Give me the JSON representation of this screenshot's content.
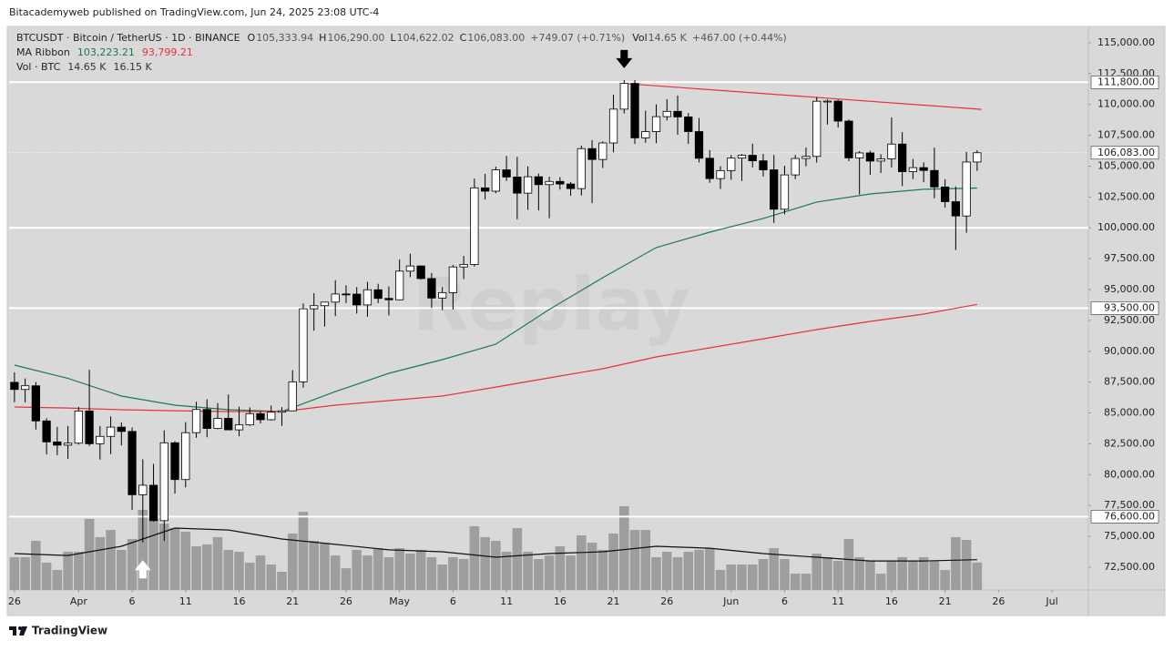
{
  "header": {
    "published": "Bitacademyweb published on TradingView.com, Jun 24, 2025 23:08 UTC-4"
  },
  "footer": {
    "brand": "TradingView"
  },
  "chart_data": {
    "type": "candlestick",
    "legend": {
      "symbol": "BTCUSDT · Bitcoin / TetherUS · 1D · BINANCE",
      "ohlc": [
        {
          "key": "O",
          "value": 105333.94,
          "label": "105,333.94"
        },
        {
          "key": "H",
          "value": 106290,
          "label": "106,290.00"
        },
        {
          "key": "L",
          "value": 104622.02,
          "label": "104,622.02"
        },
        {
          "key": "C",
          "value": 106083,
          "label": "106,083.00"
        }
      ],
      "change": "+749.07 (+0.71%)",
      "vol_key": "Vol",
      "vol": "14.65 K",
      "vol_change": "+467.00 (+0.44%)",
      "ma_name": "MA Ribbon",
      "ma_values": [
        {
          "value": 103223.21,
          "label": "103,223.21",
          "color": "#1e7a50"
        },
        {
          "value": 93799.21,
          "label": "93,799.21",
          "color": "#e8313d"
        }
      ],
      "vol_name": "Vol · BTC",
      "vol_values": [
        "14.65 K",
        "16.15 K"
      ]
    },
    "watermark": "Replay",
    "x": [
      0,
      1,
      2,
      3,
      4,
      5,
      6,
      7,
      8,
      9,
      10,
      11,
      12,
      13,
      14,
      15,
      16,
      17,
      18,
      19,
      20,
      21,
      22,
      23,
      24,
      25,
      26,
      27,
      28,
      29,
      30,
      31,
      32,
      33,
      34,
      35,
      36,
      37,
      38,
      39,
      40,
      41,
      42,
      43,
      44,
      45,
      46,
      47,
      48,
      49,
      50,
      51,
      52,
      53,
      54,
      55,
      56,
      57,
      58,
      59,
      60,
      61,
      62,
      63,
      64,
      65,
      66,
      67,
      68,
      69,
      70,
      71,
      72,
      73,
      74,
      75,
      76,
      77,
      78,
      79,
      80,
      81,
      82,
      83,
      84,
      85,
      86,
      87,
      88,
      89,
      90
    ],
    "open": [
      87480,
      86900,
      87200,
      84350,
      82650,
      82390,
      82550,
      85160,
      82500,
      83100,
      83850,
      83500,
      78370,
      79140,
      76270,
      82580,
      79600,
      83400,
      85280,
      83740,
      84560,
      83630,
      84030,
      84940,
      84450,
      85060,
      85170,
      87520,
      93440,
      93690,
      93980,
      94640,
      94630,
      93750,
      94980,
      94280,
      94170,
      96490,
      96910,
      95890,
      94310,
      94750,
      96830,
      97030,
      103240,
      102970,
      104700,
      104120,
      102810,
      104140,
      103500,
      103760,
      103550,
      103180,
      106420,
      105540,
      106880,
      109620,
      111700,
      107290,
      107800,
      109010,
      109440,
      108990,
      107800,
      105640,
      103990,
      104640,
      105650,
      105880,
      105430,
      104700,
      101510,
      104290,
      105620,
      105790,
      110260,
      110270,
      108650,
      105670,
      106070,
      105410,
      105590,
      106790,
      104550,
      104880,
      104650,
      103310,
      102120,
      100960,
      105333.94
    ],
    "high": [
      88290,
      87790,
      87500,
      84570,
      83870,
      83940,
      85490,
      88500,
      83940,
      84720,
      84230,
      83820,
      81240,
      80870,
      83590,
      82700,
      84250,
      85900,
      86100,
      85800,
      86500,
      85500,
      85450,
      85130,
      85600,
      85470,
      88460,
      93880,
      94700,
      94000,
      95760,
      95340,
      95200,
      95620,
      95460,
      95250,
      97440,
      97900,
      96960,
      96340,
      95200,
      97000,
      97730,
      103990,
      104370,
      104960,
      105820,
      105750,
      104980,
      104390,
      104150,
      104110,
      103710,
      106660,
      107100,
      107000,
      110800,
      111980,
      111970,
      109500,
      110000,
      110420,
      110720,
      109300,
      108900,
      106300,
      105000,
      105900,
      105980,
      106820,
      105990,
      105900,
      105030,
      105900,
      106500,
      110600,
      110400,
      110380,
      108780,
      106220,
      106250,
      105960,
      108950,
      107760,
      105580,
      105300,
      106500,
      103940,
      103350,
      106150,
      106290
    ],
    "low": [
      85860,
      85850,
      83650,
      81640,
      81570,
      81280,
      82430,
      82320,
      81220,
      81660,
      82370,
      77150,
      74500,
      76200,
      74620,
      78460,
      78970,
      82990,
      83030,
      83680,
      83600,
      83110,
      83950,
      84150,
      84380,
      83950,
      85140,
      87050,
      91660,
      92000,
      92850,
      93900,
      93050,
      92800,
      93900,
      92900,
      94130,
      96000,
      95800,
      93510,
      93330,
      93380,
      95850,
      96870,
      102300,
      102800,
      103800,
      100700,
      101460,
      101410,
      100780,
      103100,
      102600,
      102620,
      102000,
      104850,
      106120,
      109270,
      106800,
      106900,
      106860,
      108700,
      107540,
      106800,
      105300,
      103650,
      103150,
      103900,
      103800,
      104900,
      104150,
      100400,
      101100,
      103950,
      104980,
      105290,
      108370,
      108120,
      105400,
      102700,
      104300,
      104450,
      104900,
      103380,
      103950,
      103700,
      102400,
      101630,
      98200,
      99600,
      104622.02
    ],
    "close": [
      86900,
      87200,
      84350,
      82650,
      82390,
      82550,
      85160,
      82500,
      83100,
      83850,
      83500,
      78370,
      79140,
      76270,
      82580,
      79600,
      83400,
      85280,
      83740,
      84560,
      83630,
      84030,
      84940,
      84450,
      85060,
      85170,
      87520,
      93440,
      93690,
      93980,
      94640,
      94630,
      93750,
      94980,
      94280,
      94170,
      96490,
      96910,
      95890,
      94310,
      94750,
      96830,
      97030,
      103240,
      102970,
      104700,
      104120,
      102810,
      104140,
      103500,
      103760,
      103550,
      103180,
      106420,
      105540,
      106880,
      109620,
      111700,
      107290,
      107800,
      109010,
      109440,
      108990,
      107800,
      105640,
      103990,
      104640,
      105650,
      105880,
      105430,
      104700,
      101510,
      104290,
      105620,
      105790,
      110260,
      110270,
      108650,
      105670,
      106070,
      105410,
      105590,
      106790,
      104550,
      104880,
      104650,
      103310,
      102120,
      100960,
      105333.94,
      106083
    ],
    "up_color": "#ffffff",
    "down_color": "#000000",
    "volume": [
      17.5,
      17.5,
      26.2,
      14.6,
      10.7,
      20.4,
      20.4,
      37.9,
      28.2,
      32.0,
      21.4,
      27.2,
      42.7,
      37.9,
      35.4,
      33.0,
      31.1,
      23.3,
      24.3,
      28.2,
      21.4,
      20.4,
      14.6,
      18.4,
      13.6,
      9.7,
      30.1,
      41.7,
      26.2,
      25.2,
      18.4,
      11.6,
      21.4,
      18.4,
      22.3,
      17.5,
      22.3,
      19.4,
      21.4,
      17.5,
      13.6,
      17.5,
      16.5,
      34.0,
      28.2,
      26.2,
      20.4,
      33.0,
      20.4,
      16.5,
      18.4,
      23.3,
      18.4,
      29.1,
      25.2,
      21.4,
      30.1,
      44.7,
      32.0,
      32.0,
      17.5,
      20.4,
      17.5,
      20.4,
      21.4,
      22.3,
      10.7,
      13.6,
      13.6,
      13.6,
      16.5,
      22.3,
      16.5,
      8.7,
      8.7,
      19.4,
      17.5,
      15.5,
      27.2,
      17.5,
      15.5,
      8.7,
      15.5,
      17.5,
      15.5,
      17.5,
      15.5,
      10.7,
      28.2,
      26.7,
      14.65
    ],
    "volume_color": "#9e9e9e",
    "vlim": [
      0,
      300
    ],
    "lines": [
      {
        "name": "MA 50",
        "color": "#1e7a50",
        "axis": "y",
        "x": [
          0,
          5,
          10,
          15,
          20,
          25,
          30,
          35,
          40,
          45,
          50,
          55,
          60,
          65,
          70,
          75,
          80,
          85,
          90
        ],
        "values": [
          88875,
          87800,
          86370,
          85630,
          85260,
          85110,
          86730,
          88210,
          89320,
          90570,
          93380,
          95960,
          98400,
          99650,
          100760,
          102090,
          102750,
          103120,
          103223.21
        ]
      },
      {
        "name": "MA 200",
        "color": "#e8313d",
        "axis": "y",
        "x": [
          0,
          5,
          10,
          15,
          20,
          25,
          30,
          35,
          40,
          45,
          50,
          55,
          60,
          65,
          70,
          75,
          80,
          85,
          90
        ],
        "values": [
          85480,
          85400,
          85260,
          85180,
          85110,
          85110,
          85630,
          86000,
          86370,
          87100,
          87840,
          88580,
          89540,
          90280,
          91010,
          91750,
          92420,
          93010,
          93799.21
        ]
      },
      {
        "name": "Vol MA",
        "color": "#111111",
        "axis": "v",
        "x": [
          0,
          5,
          10,
          15,
          20,
          25,
          30,
          35,
          40,
          45,
          50,
          55,
          60,
          65,
          70,
          75,
          80,
          85,
          90
        ],
        "values": [
          19.4,
          18.4,
          23.3,
          33.0,
          32.0,
          27.2,
          24.3,
          21.4,
          20.4,
          17.5,
          19.4,
          20.4,
          23.3,
          22.3,
          19.4,
          17.5,
          15.5,
          15.5,
          16.15
        ]
      }
    ],
    "levels": [
      {
        "value": 111800,
        "label": "111,800.00"
      },
      {
        "value": 100000
      },
      {
        "value": 93500,
        "label": "93,500.00"
      },
      {
        "value": 76600,
        "label": "76,600.00"
      }
    ],
    "price_line": {
      "value": 106083,
      "label": "106,083.00"
    },
    "trendline": {
      "x": [
        57,
        90.4
      ],
      "values": [
        111700,
        109600
      ],
      "color": "#e8313d"
    },
    "arrows": [
      {
        "x": 57,
        "y": 113600,
        "dir": "down",
        "color": "#000000"
      },
      {
        "x": 12,
        "y": 72400,
        "dir": "up",
        "color": "#ffffff"
      }
    ],
    "xlim": [
      -0.5,
      100.4
    ],
    "ylim": [
      70650,
      116250
    ],
    "xticks": [
      {
        "value": 0,
        "label": "26"
      },
      {
        "value": 6,
        "label": "Apr"
      },
      {
        "value": 11,
        "label": "6"
      },
      {
        "value": 16,
        "label": "11"
      },
      {
        "value": 21,
        "label": "16"
      },
      {
        "value": 26,
        "label": "21"
      },
      {
        "value": 31,
        "label": "26"
      },
      {
        "value": 36,
        "label": "May"
      },
      {
        "value": 41,
        "label": "6"
      },
      {
        "value": 46,
        "label": "11"
      },
      {
        "value": 51,
        "label": "16"
      },
      {
        "value": 56,
        "label": "21"
      },
      {
        "value": 61,
        "label": "26"
      },
      {
        "value": 67,
        "label": "Jun"
      },
      {
        "value": 72,
        "label": "6"
      },
      {
        "value": 77,
        "label": "11"
      },
      {
        "value": 82,
        "label": "16"
      },
      {
        "value": 87,
        "label": "21"
      },
      {
        "value": 92,
        "label": "26"
      },
      {
        "value": 97,
        "label": "Jul"
      }
    ],
    "yticks": [
      {
        "value": 72500,
        "label": "72,500.00"
      },
      {
        "value": 75000,
        "label": "75,000.00"
      },
      {
        "value": 77500,
        "label": "77,500.00"
      },
      {
        "value": 80000,
        "label": "80,000.00"
      },
      {
        "value": 82500,
        "label": "82,500.00"
      },
      {
        "value": 85000,
        "label": "85,000.00"
      },
      {
        "value": 87500,
        "label": "87,500.00"
      },
      {
        "value": 90000,
        "label": "90,000.00"
      },
      {
        "value": 92500,
        "label": "92,500.00"
      },
      {
        "value": 95000,
        "label": "95,000.00"
      },
      {
        "value": 97500,
        "label": "97,500.00"
      },
      {
        "value": 100000,
        "label": "100,000.00"
      },
      {
        "value": 102500,
        "label": "102,500.00"
      },
      {
        "value": 105000,
        "label": "105,000.00"
      },
      {
        "value": 107500,
        "label": "107,500.00"
      },
      {
        "value": 110000,
        "label": "110,000.00"
      },
      {
        "value": 112500,
        "label": "112,500.00"
      },
      {
        "value": 115000,
        "label": "115,000.00"
      }
    ],
    "grid": false
  }
}
